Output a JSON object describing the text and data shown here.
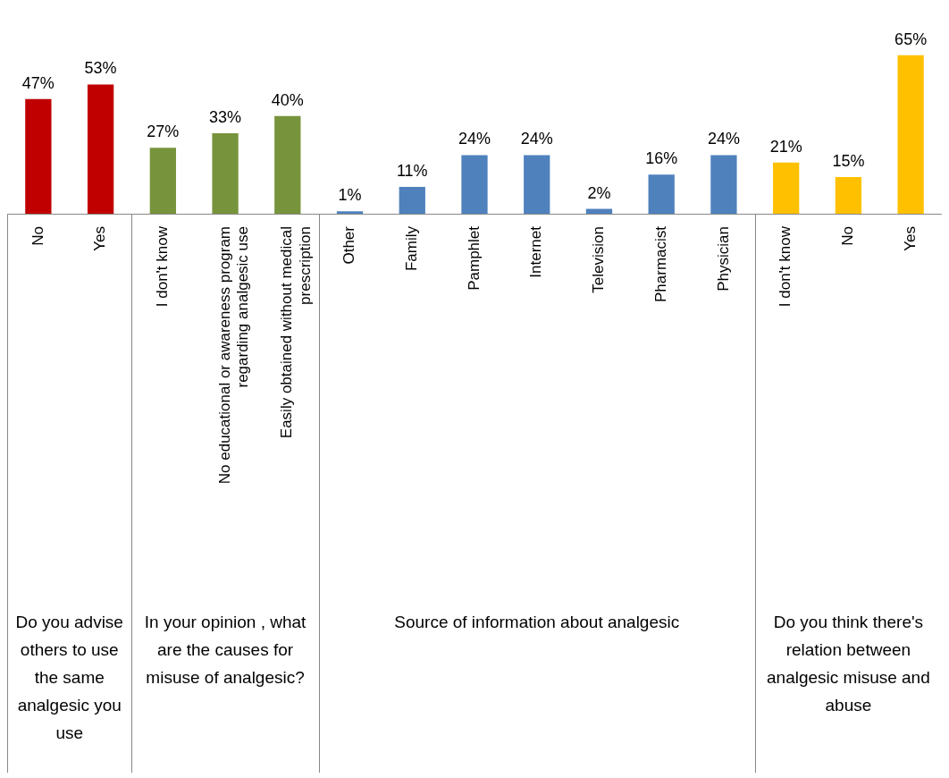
{
  "chart_data": {
    "type": "bar",
    "categories": [
      "No",
      "Yes",
      "I don't know",
      "No educational or awareness program regarding analgesic use",
      "Easily obtained without medical prescription",
      "Other",
      "Family",
      "Pamphlet",
      "Internet",
      "Television",
      "Pharmacist",
      "Physician",
      "I don't know",
      "No",
      "Yes"
    ],
    "values": [
      47,
      53,
      27,
      33,
      40,
      1,
      11,
      24,
      24,
      2,
      16,
      24,
      21,
      15,
      65
    ],
    "value_labels": [
      "47%",
      "53%",
      "27%",
      "33%",
      "40%",
      "1%",
      "11%",
      "24%",
      "24%",
      "2%",
      "16%",
      "24%",
      "21%",
      "15%",
      "65%"
    ],
    "colors": [
      "#c00000",
      "#c00000",
      "#77933c",
      "#77933c",
      "#77933c",
      "#4f81bd",
      "#4f81bd",
      "#4f81bd",
      "#4f81bd",
      "#4f81bd",
      "#4f81bd",
      "#4f81bd",
      "#ffc000",
      "#ffc000",
      "#ffc000"
    ],
    "annotations": [
      "Do you advise others to use the same analgesic you use",
      "In your opinion , what are the causes for misuse of analgesic?",
      "Source of information about analgesic",
      "Do you think there's relation between analgesic misuse and abuse"
    ],
    "legend": false,
    "grid": false
  }
}
